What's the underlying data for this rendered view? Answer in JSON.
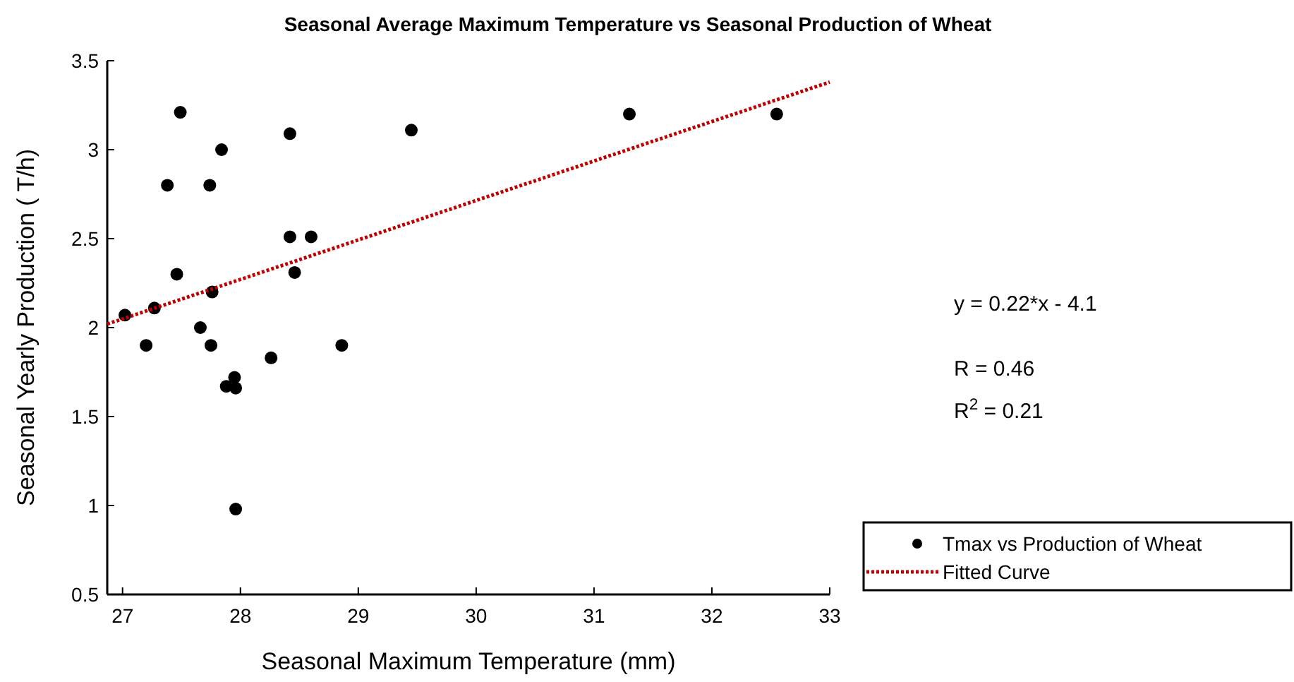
{
  "chart_data": {
    "type": "scatter",
    "title": "Seasonal Average Maximum Temperature vs Seasonal Production of Wheat",
    "xlabel": "Seasonal Maximum Temperature (mm)",
    "ylabel": "Seasonal Yearly Production ( T/h)",
    "xlim": [
      26.87,
      33
    ],
    "ylim": [
      0.5,
      3.5
    ],
    "xticks": [
      27,
      28,
      29,
      30,
      31,
      32,
      33
    ],
    "yticks": [
      0.5,
      1,
      1.5,
      2,
      2.5,
      3,
      3.5
    ],
    "grid": false,
    "legend": "bottom right",
    "annotations": [
      "y = 0.22*x - 4.1",
      "R = 0.46",
      "R$^{2}$ = 0.21"
    ],
    "series": [
      {
        "name": "Tmax vs Production of Wheat",
        "color": "#000000",
        "marker": "circle",
        "x": [
          27.02,
          27.2,
          27.27,
          27.38,
          27.46,
          27.49,
          27.66,
          27.74,
          27.75,
          27.76,
          27.84,
          27.88,
          27.95,
          27.96,
          27.96,
          28.26,
          28.42,
          28.42,
          28.46,
          28.6,
          28.86,
          29.45,
          31.3,
          32.55
        ],
        "values": [
          2.07,
          1.9,
          2.11,
          2.8,
          2.3,
          3.21,
          2.0,
          2.8,
          1.9,
          2.2,
          3.0,
          1.67,
          1.72,
          1.66,
          0.98,
          1.83,
          3.09,
          2.51,
          2.31,
          2.51,
          1.9,
          3.11,
          3.2,
          3.2
        ]
      },
      {
        "name": "Fitted Curve",
        "type": "line",
        "color": "#c00000",
        "line_style": "dotted",
        "x": [
          26.87,
          33
        ],
        "values": [
          2.02,
          3.38
        ]
      }
    ]
  }
}
